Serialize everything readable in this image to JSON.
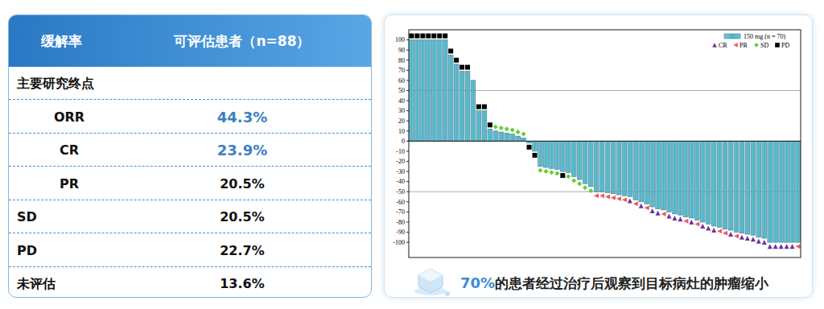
{
  "table": {
    "header": [
      "缓解率",
      "可评估患者（n=88）"
    ],
    "rows": [
      {
        "label": "主要研究终点",
        "children": [
          {
            "label": "ORR",
            "value": "44.3%",
            "color": "#3d7fc4"
          },
          {
            "label": "CR",
            "value": "23.9%",
            "color": "#3d7fc4"
          },
          {
            "label": "PR",
            "value": "20.5%"
          }
        ]
      },
      {
        "label": "SD",
        "value": "20.5%"
      },
      {
        "label": "PD",
        "value": "22.7%"
      },
      {
        "label": "未评估",
        "value": "13.6%"
      }
    ]
  },
  "chart_data": {
    "type": "bar",
    "series": [
      {
        "name": "150 mg (n = 70)",
        "type": "bar",
        "color": "#4fb3c7",
        "values": [
          100,
          100,
          100,
          100,
          100,
          100,
          100,
          85,
          76,
          69,
          69,
          60,
          30,
          30,
          12,
          10,
          9,
          8,
          7,
          5,
          3,
          -2,
          -10,
          -25,
          -26,
          -27,
          -28,
          -30,
          -31,
          -35,
          -38,
          -42,
          -45,
          -50,
          -50,
          -51,
          -52,
          -53,
          -54,
          -55,
          -58,
          -60,
          -62,
          -65,
          -67,
          -68,
          -70,
          -72,
          -73,
          -75,
          -76,
          -78,
          -80,
          -82,
          -84,
          -85,
          -87,
          -88,
          -90,
          -91,
          -92,
          -93,
          -95,
          -96,
          -100,
          -100,
          -100,
          -100,
          -100,
          -100
        ]
      },
      {
        "name": "CR",
        "type": "scatter",
        "marker": "triangle",
        "color": "#7030a0",
        "values": [
          null,
          null,
          null,
          null,
          null,
          null,
          null,
          null,
          null,
          null,
          null,
          null,
          null,
          null,
          null,
          null,
          null,
          null,
          null,
          null,
          null,
          null,
          null,
          null,
          null,
          null,
          null,
          null,
          null,
          null,
          null,
          null,
          null,
          null,
          null,
          null,
          null,
          null,
          null,
          -55,
          null,
          -60,
          null,
          -65,
          -67,
          null,
          -70,
          -72,
          -73,
          null,
          -76,
          null,
          -80,
          -82,
          -84,
          null,
          null,
          -88,
          null,
          -91,
          -92,
          -93,
          -95,
          -96,
          -100,
          -100,
          -100,
          -100,
          -100,
          null
        ]
      },
      {
        "name": "PR",
        "type": "scatter",
        "marker": "triangle-left",
        "color": "#f05a5a",
        "values": [
          null,
          null,
          null,
          null,
          null,
          null,
          null,
          null,
          null,
          null,
          null,
          null,
          null,
          null,
          null,
          null,
          null,
          null,
          null,
          null,
          null,
          null,
          null,
          null,
          null,
          null,
          null,
          null,
          null,
          null,
          null,
          null,
          null,
          -50,
          -50,
          -51,
          -52,
          -53,
          -54,
          null,
          -58,
          null,
          -62,
          null,
          null,
          -68,
          null,
          null,
          null,
          -75,
          null,
          -78,
          null,
          null,
          null,
          -85,
          -87,
          null,
          -90,
          null,
          null,
          null,
          null,
          null,
          null,
          null,
          null,
          null,
          null,
          -100
        ]
      },
      {
        "name": "SD",
        "type": "scatter",
        "marker": "diamond",
        "color": "#66cc33",
        "values": [
          null,
          null,
          null,
          null,
          null,
          null,
          null,
          null,
          null,
          null,
          null,
          null,
          null,
          null,
          null,
          10,
          9,
          8,
          7,
          5,
          3,
          null,
          null,
          -25,
          -26,
          -27,
          -28,
          null,
          -31,
          -35,
          -38,
          -42,
          -45,
          null,
          null,
          null,
          null,
          null,
          null,
          null,
          null,
          null,
          null,
          null,
          null,
          null,
          null,
          null,
          null,
          null,
          null,
          null,
          null,
          null,
          null,
          null,
          null,
          null,
          null,
          null,
          null,
          null,
          null,
          null,
          null,
          null,
          null,
          null,
          null,
          null
        ]
      },
      {
        "name": "PD",
        "type": "scatter",
        "marker": "square",
        "color": "#000000",
        "values": [
          100,
          100,
          100,
          100,
          100,
          100,
          100,
          85,
          76,
          69,
          69,
          null,
          30,
          30,
          12,
          null,
          null,
          null,
          null,
          null,
          null,
          -2,
          -10,
          null,
          null,
          null,
          null,
          -30,
          null,
          null,
          null,
          null,
          null,
          null,
          null,
          null,
          null,
          null,
          null,
          null,
          null,
          null,
          null,
          null,
          null,
          null,
          null,
          null,
          null,
          null,
          null,
          null,
          null,
          null,
          null,
          null,
          null,
          null,
          null,
          null,
          null,
          null,
          null,
          null,
          null,
          null,
          null,
          null,
          null,
          null
        ]
      }
    ],
    "ylim": [
      -115,
      110
    ],
    "yticks": [
      -100,
      -90,
      -80,
      -70,
      -60,
      -50,
      -40,
      -30,
      -20,
      -10,
      0,
      10,
      20,
      30,
      40,
      50,
      60,
      70,
      80,
      90,
      100
    ],
    "reference_lines": [
      50,
      -50
    ],
    "grid": false,
    "legend": "top-right",
    "tick_labels": "y"
  },
  "caption": {
    "highlight": "70%",
    "text": "的患者经过治疗后观察到目标病灶的肿瘤缩小"
  }
}
